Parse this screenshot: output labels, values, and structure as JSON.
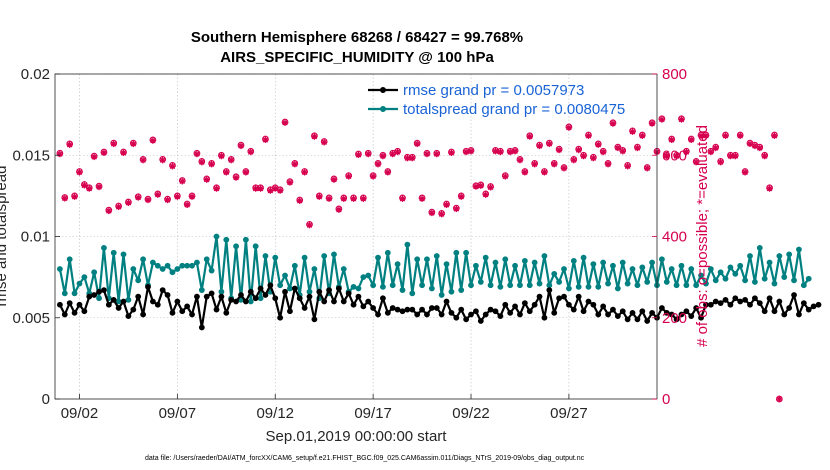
{
  "chart_data": {
    "type": "line",
    "title": "Southern Hemisphere 68268 / 68427 = 99.768%",
    "subtitle": "AIRS_SPECIFIC_HUMIDITY @ 100 hPa",
    "xlabel": "Sep.01,2019 00:00:00 start",
    "ylabel_left": "rmse and totalspread",
    "ylabel_right": "# of obs: o=possible; *=evaluated",
    "footnote": "data file: /Users/raeder/DAI/ATM_forcXX/CAM6_setup/f.e21.FHIST_BGC.f09_025.CAM6assim.011/Diags_NTrS_2019-09/obs_diag_output.nc",
    "x_range": [
      0.75,
      31.5
    ],
    "ylim_left": [
      0,
      0.02
    ],
    "ylim_right": [
      0,
      800
    ],
    "x_ticks": [
      2,
      7,
      12,
      17,
      22,
      27
    ],
    "x_tick_labels": [
      "09/02",
      "09/07",
      "09/12",
      "09/17",
      "09/22",
      "09/27"
    ],
    "y_ticks_left": [
      0,
      0.005,
      0.01,
      0.015,
      0.02
    ],
    "y_tick_labels_left": [
      "0",
      "0.005",
      "0.01",
      "0.015",
      "0.02"
    ],
    "y_ticks_right": [
      0,
      200,
      400,
      600,
      800
    ],
    "y_tick_labels_right": [
      "0",
      "200",
      "400",
      "600",
      "800"
    ],
    "grid": true,
    "legend_position": "top-right",
    "x_start": 1.0,
    "x_step": 0.25,
    "series": [
      {
        "name": "rmse grand pr = 0.0057973",
        "color": "#000000",
        "axis": "left",
        "values": [
          0.0058,
          0.0052,
          0.0059,
          0.0053,
          0.0058,
          0.0054,
          0.0063,
          0.0064,
          0.0066,
          0.0067,
          0.0058,
          0.0061,
          0.0056,
          0.006,
          0.0051,
          0.0055,
          0.0063,
          0.0052,
          0.0069,
          0.006,
          0.0058,
          0.0067,
          0.0064,
          0.0053,
          0.006,
          0.0054,
          0.0057,
          0.0052,
          0.0063,
          0.0044,
          0.0063,
          0.0065,
          0.0055,
          0.0063,
          0.0053,
          0.0061,
          0.006,
          0.0064,
          0.006,
          0.0066,
          0.0062,
          0.0068,
          0.0064,
          0.007,
          0.0062,
          0.005,
          0.0066,
          0.0054,
          0.0068,
          0.0062,
          0.0056,
          0.0063,
          0.0049,
          0.0066,
          0.006,
          0.0067,
          0.006,
          0.0068,
          0.006,
          0.0065,
          0.0058,
          0.0063,
          0.0057,
          0.006,
          0.0056,
          0.0052,
          0.0062,
          0.0053,
          0.0056,
          0.0055,
          0.0054,
          0.0055,
          0.0055,
          0.0052,
          0.0055,
          0.0052,
          0.0056,
          0.0056,
          0.0052,
          0.006,
          0.0053,
          0.005,
          0.0055,
          0.0049,
          0.0052,
          0.0054,
          0.0048,
          0.0052,
          0.0055,
          0.0054,
          0.0051,
          0.0058,
          0.0053,
          0.0057,
          0.0052,
          0.0059,
          0.0054,
          0.0058,
          0.0063,
          0.005,
          0.0067,
          0.0053,
          0.0062,
          0.0063,
          0.0058,
          0.0055,
          0.0063,
          0.0054,
          0.006,
          0.0058,
          0.0052,
          0.0057,
          0.0052,
          0.0055,
          0.0051,
          0.0054,
          0.0049,
          0.0053,
          0.0049,
          0.0054,
          0.0048,
          0.0053,
          0.005,
          0.0056,
          0.0053,
          0.0052,
          0.0049,
          0.0052,
          0.0054,
          0.0051,
          0.0056,
          0.005,
          0.0058,
          0.0058,
          0.006,
          0.0059,
          0.0061,
          0.0058,
          0.0062,
          0.006,
          0.0061,
          0.0058,
          0.0062,
          0.0059,
          0.0054,
          0.0062,
          0.0054,
          0.006,
          0.0052,
          0.0056,
          0.0064,
          0.0052,
          0.0059,
          0.0055,
          0.0057,
          0.0058
        ]
      },
      {
        "name": "totalspread grand pr = 0.0080475",
        "color": "#008080",
        "axis": "left",
        "values": [
          0.008,
          0.0065,
          0.0086,
          0.0065,
          0.0071,
          0.0075,
          0.0065,
          0.0078,
          0.0062,
          0.0093,
          0.0062,
          0.009,
          0.006,
          0.0089,
          0.0061,
          0.008,
          0.0073,
          0.0086,
          0.007,
          0.0084,
          0.0082,
          0.008,
          0.0082,
          0.0078,
          0.008,
          0.0082,
          0.0082,
          0.0082,
          0.0084,
          0.0067,
          0.0086,
          0.0079,
          0.01,
          0.0066,
          0.0098,
          0.0062,
          0.0094,
          0.0061,
          0.0098,
          0.006,
          0.0094,
          0.0062,
          0.0088,
          0.0066,
          0.0087,
          0.007,
          0.0076,
          0.0068,
          0.0082,
          0.0064,
          0.0087,
          0.0066,
          0.008,
          0.0062,
          0.0088,
          0.0065,
          0.0089,
          0.0069,
          0.008,
          0.0066,
          0.0069,
          0.0068,
          0.0075,
          0.0076,
          0.007,
          0.0087,
          0.0069,
          0.009,
          0.007,
          0.0083,
          0.0067,
          0.0095,
          0.0065,
          0.0086,
          0.007,
          0.0086,
          0.0068,
          0.0088,
          0.0064,
          0.0083,
          0.0066,
          0.009,
          0.0067,
          0.009,
          0.007,
          0.0082,
          0.0072,
          0.0087,
          0.007,
          0.0084,
          0.0069,
          0.0086,
          0.007,
          0.0082,
          0.007,
          0.0085,
          0.007,
          0.0084,
          0.0071,
          0.0088,
          0.007,
          0.0077,
          0.0072,
          0.008,
          0.0068,
          0.0085,
          0.0069,
          0.0087,
          0.0069,
          0.0083,
          0.0069,
          0.0084,
          0.0071,
          0.0082,
          0.0068,
          0.0084,
          0.0071,
          0.008,
          0.007,
          0.0081,
          0.0072,
          0.0084,
          0.007,
          0.0086,
          0.0072,
          0.008,
          0.007,
          0.0082,
          0.007,
          0.008,
          0.007,
          0.0076,
          0.0071,
          0.008,
          0.0073,
          0.0078,
          0.0074,
          0.0081,
          0.0077,
          0.0082,
          0.0073,
          0.0088,
          0.0072,
          0.0093,
          0.0074,
          0.0084,
          0.0071,
          0.0088,
          0.0075,
          0.0089,
          0.0073,
          0.0092,
          0.007,
          0.0074
        ]
      }
    ],
    "obs_possible": {
      "marker": "o",
      "color": "#d6004f",
      "axis": "right",
      "values": [
        605,
        496,
        628,
        500,
        560,
        528,
        520,
        598,
        524,
        608,
        465,
        630,
        475,
        608,
        485,
        630,
        498,
        590,
        492,
        638,
        505,
        590,
        492,
        575,
        500,
        538,
        480,
        500,
        605,
        585,
        542,
        580,
        520,
        600,
        560,
        590,
        547,
        625,
        560,
        610,
        520,
        520,
        640,
        515,
        520,
        515,
        682,
        535,
        580,
        490,
        560,
        430,
        648,
        500,
        634,
        495,
        542,
        468,
        495,
        550,
        495,
        603,
        495,
        605,
        550,
        580,
        600,
        560,
        605,
        610,
        495,
        595,
        595,
        630,
        495,
        605,
        460,
        605,
        457,
        480,
        608,
        470,
        500,
        610,
        612,
        525,
        527,
        505,
        523,
        612,
        610,
        550,
        610,
        612,
        590,
        560,
        648,
        580,
        625,
        560,
        630,
        580,
        615,
        570,
        670,
        590,
        615,
        600,
        650,
        595,
        628,
        610,
        580,
        680,
        620,
        612,
        575,
        660,
        620,
        650,
        570,
        680,
        610,
        690,
        600,
        640,
        600,
        690,
        610,
        640,
        585,
        650,
        650,
        610,
        620,
        585,
        650,
        600,
        600,
        650,
        560,
        630,
        625,
        620,
        600,
        520,
        650,
        0
      ]
    },
    "obs_evaluated": {
      "marker": "*",
      "color": "#d6004f",
      "axis": "right",
      "values": [
        603,
        494,
        626,
        498,
        558,
        526,
        518,
        596,
        522,
        606,
        463,
        628,
        473,
        606,
        483,
        628,
        496,
        588,
        490,
        636,
        503,
        588,
        490,
        573,
        498,
        536,
        478,
        498,
        603,
        583,
        540,
        578,
        518,
        598,
        558,
        588,
        545,
        623,
        558,
        608,
        518,
        518,
        638,
        513,
        518,
        513,
        680,
        533,
        578,
        488,
        558,
        428,
        646,
        498,
        632,
        493,
        540,
        466,
        493,
        548,
        493,
        601,
        493,
        603,
        548,
        578,
        598,
        558,
        603,
        608,
        493,
        593,
        593,
        628,
        493,
        603,
        458,
        603,
        455,
        478,
        606,
        468,
        498,
        608,
        610,
        523,
        525,
        503,
        521,
        610,
        608,
        548,
        608,
        610,
        588,
        558,
        646,
        578,
        623,
        558,
        628,
        578,
        613,
        568,
        668,
        588,
        613,
        598,
        648,
        593,
        626,
        608,
        578,
        678,
        618,
        610,
        573,
        658,
        618,
        648,
        568,
        678,
        608,
        688,
        598,
        638,
        598,
        688,
        608,
        638,
        583,
        648,
        648,
        608,
        618,
        583,
        648,
        598,
        598,
        648,
        558,
        628,
        623,
        618,
        598,
        518,
        648,
        0
      ]
    }
  }
}
